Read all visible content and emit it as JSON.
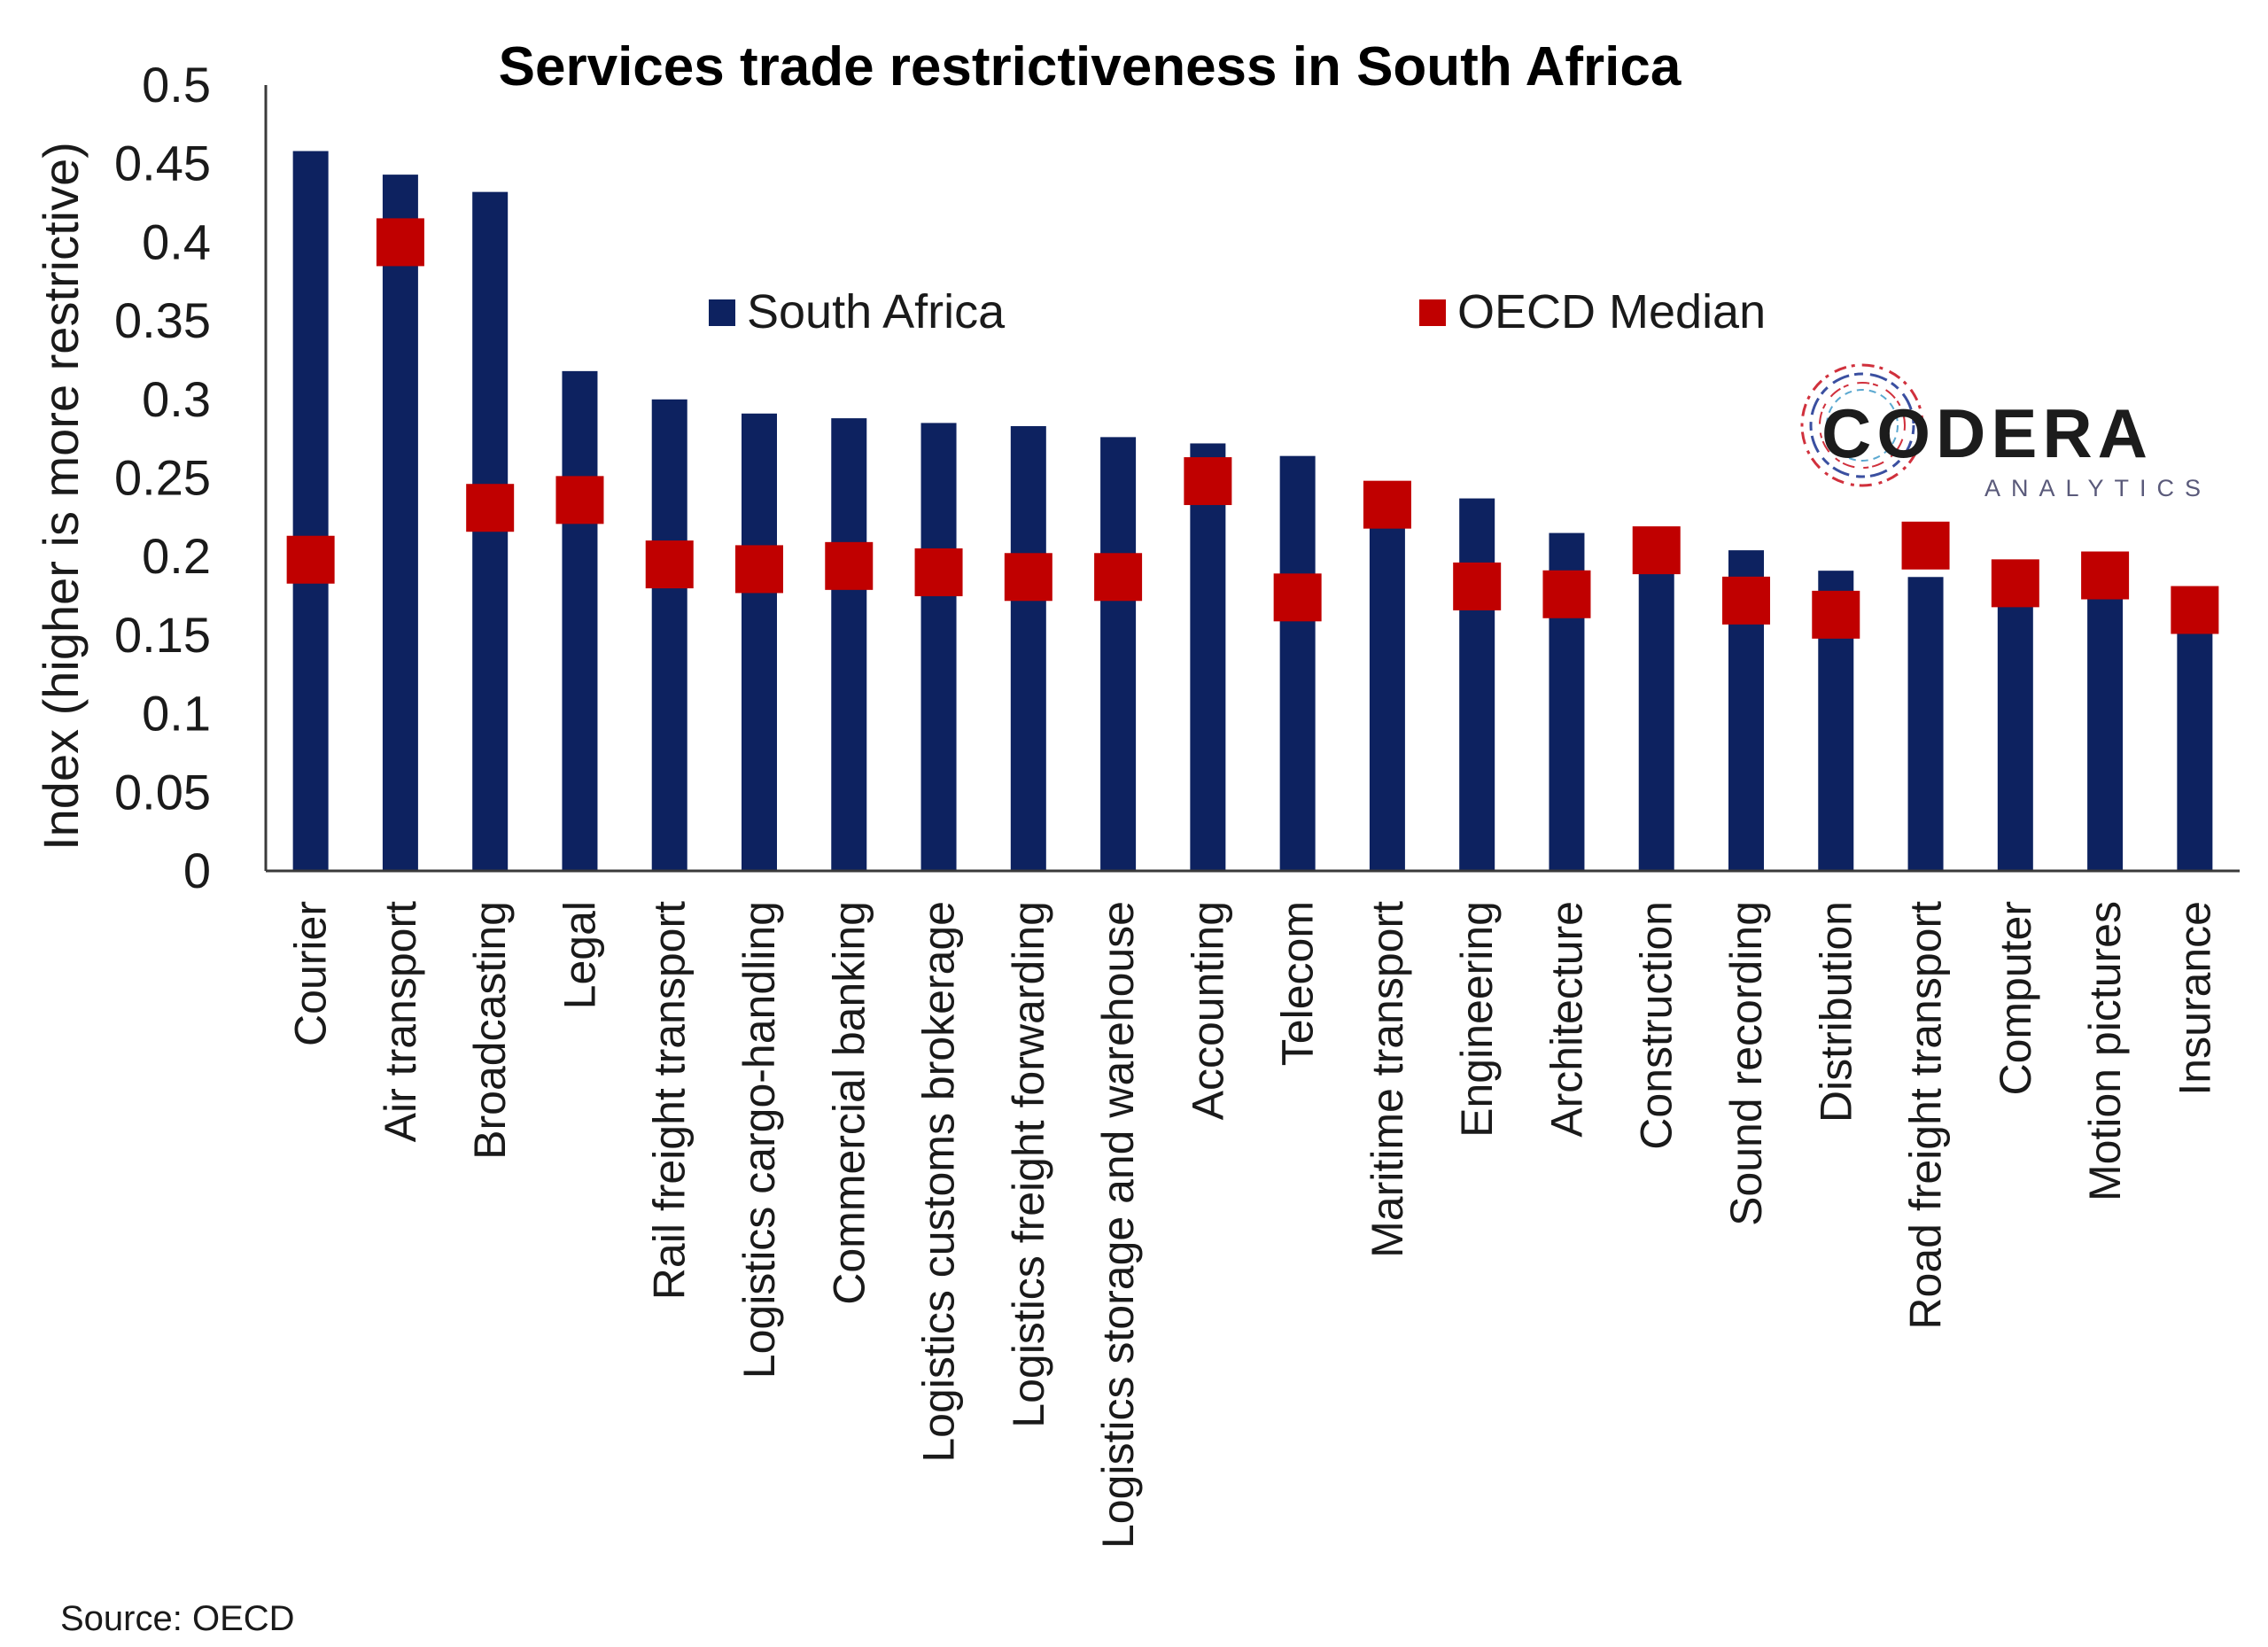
{
  "chart_data": {
    "type": "bar",
    "title": "Services trade restrictiveness in South Africa",
    "ylabel": "Index (higher is more restrictive)",
    "xlabel": "",
    "ylim": [
      0,
      0.5
    ],
    "yticks": [
      "0",
      "0.05",
      "0.1",
      "0.15",
      "0.2",
      "0.25",
      "0.3",
      "0.35",
      "0.4",
      "0.45",
      "0.5"
    ],
    "yticks_values": [
      0,
      0.05,
      0.1,
      0.15,
      0.2,
      0.25,
      0.3,
      0.35,
      0.4,
      0.45,
      0.5
    ],
    "grid": false,
    "legend_position": "top-center",
    "categories": [
      "Courier",
      "Air transport",
      "Broadcasting",
      "Legal",
      "Rail freight transport",
      "Logistics cargo-handling",
      "Commercial banking",
      "Logistics customs brokerage",
      "Logistics freight forwarding",
      "Logistics storage and warehouse",
      "Accounting",
      "Telecom",
      "Maritime transport",
      "Engineering",
      "Architecture",
      "Construction",
      "Sound recording",
      "Distribution",
      "Road freight transport",
      "Computer",
      "Motion pictures",
      "Insurance"
    ],
    "series": [
      {
        "name": "South Africa",
        "marker": "bar",
        "color": "#0d2260",
        "values": [
          0.458,
          0.443,
          0.432,
          0.318,
          0.3,
          0.291,
          0.288,
          0.285,
          0.283,
          0.276,
          0.272,
          0.264,
          0.248,
          0.237,
          0.215,
          0.2,
          0.204,
          0.191,
          0.187,
          0.18,
          0.18,
          0.16
        ]
      },
      {
        "name": "OECD Median",
        "marker": "square",
        "color": "#c00000",
        "values": [
          0.198,
          0.4,
          0.231,
          0.236,
          0.195,
          0.192,
          0.194,
          0.19,
          0.187,
          0.187,
          0.248,
          0.174,
          0.233,
          0.181,
          0.176,
          0.204,
          0.172,
          0.163,
          0.207,
          0.183,
          0.188,
          0.166
        ]
      }
    ]
  },
  "source": "Source: OECD",
  "logo": {
    "name": "CODERA",
    "subtitle": "ANALYTICS"
  }
}
